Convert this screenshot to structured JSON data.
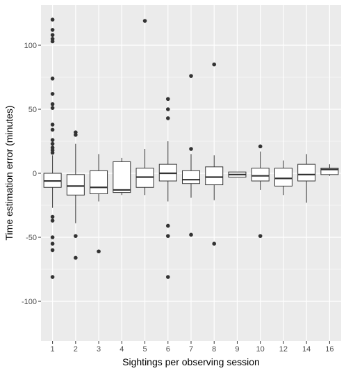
{
  "chart_data": {
    "type": "boxplot",
    "title": "",
    "xlabel": "Sightings per observing session",
    "ylabel": "Time estimation error (minutes)",
    "categories": [
      "1",
      "2",
      "3",
      "4",
      "5",
      "6",
      "7",
      "8",
      "9",
      "10",
      "12",
      "14",
      "16"
    ],
    "y_ticks": [
      -100,
      -50,
      0,
      50,
      100
    ],
    "ylim": [
      -131,
      131
    ],
    "grid": true,
    "panel_background": "#ebebeb",
    "grid_color": "#ffffff",
    "box_fill": "#ffffff",
    "box_stroke": "#333333",
    "point_color": "#333333",
    "boxes": [
      {
        "category": "1",
        "whisker_low": -27,
        "q1": -11,
        "median": -6,
        "q3": 0,
        "whisker_high": 14,
        "outliers": [
          120,
          112,
          108,
          105,
          103,
          74,
          62,
          54,
          51,
          38,
          34,
          26,
          23,
          20,
          18,
          16,
          -34,
          -37,
          -50,
          -55,
          -60,
          -81
        ]
      },
      {
        "category": "2",
        "whisker_low": -39,
        "q1": -17,
        "median": -10,
        "q3": -1,
        "whisker_high": 23,
        "outliers": [
          32,
          30,
          -49,
          -66
        ]
      },
      {
        "category": "3",
        "whisker_low": -22,
        "q1": -16,
        "median": -11,
        "q3": 2,
        "whisker_high": 15,
        "outliers": [
          -61
        ]
      },
      {
        "category": "4",
        "whisker_low": -17,
        "q1": -15,
        "median": -13,
        "q3": 9,
        "whisker_high": 12,
        "outliers": []
      },
      {
        "category": "5",
        "whisker_low": -17,
        "q1": -11,
        "median": -3,
        "q3": 4,
        "whisker_high": 19,
        "outliers": [
          119
        ]
      },
      {
        "category": "6",
        "whisker_low": -22,
        "q1": -6,
        "median": 0,
        "q3": 7,
        "whisker_high": 25,
        "outliers": [
          58,
          50,
          43,
          -41,
          -49,
          -81
        ]
      },
      {
        "category": "7",
        "whisker_low": -19,
        "q1": -8,
        "median": -5,
        "q3": 2,
        "whisker_high": 15,
        "outliers": [
          76,
          19,
          -48
        ]
      },
      {
        "category": "8",
        "whisker_low": -21,
        "q1": -9,
        "median": -3,
        "q3": 5,
        "whisker_high": 14,
        "outliers": [
          85,
          -55
        ]
      },
      {
        "category": "9",
        "whisker_low": -3,
        "q1": -3,
        "median": -1,
        "q3": 1,
        "whisker_high": 1,
        "outliers": []
      },
      {
        "category": "10",
        "whisker_low": -13,
        "q1": -6,
        "median": -2,
        "q3": 4,
        "whisker_high": 17,
        "outliers": [
          21,
          -49
        ]
      },
      {
        "category": "12",
        "whisker_low": -17,
        "q1": -10,
        "median": -4,
        "q3": 4,
        "whisker_high": 10,
        "outliers": []
      },
      {
        "category": "14",
        "whisker_low": -23,
        "q1": -6,
        "median": -1,
        "q3": 7,
        "whisker_high": 15,
        "outliers": []
      },
      {
        "category": "16",
        "whisker_low": -2,
        "q1": -1,
        "median": 3,
        "q3": 4,
        "whisker_high": 7,
        "outliers": []
      }
    ]
  }
}
